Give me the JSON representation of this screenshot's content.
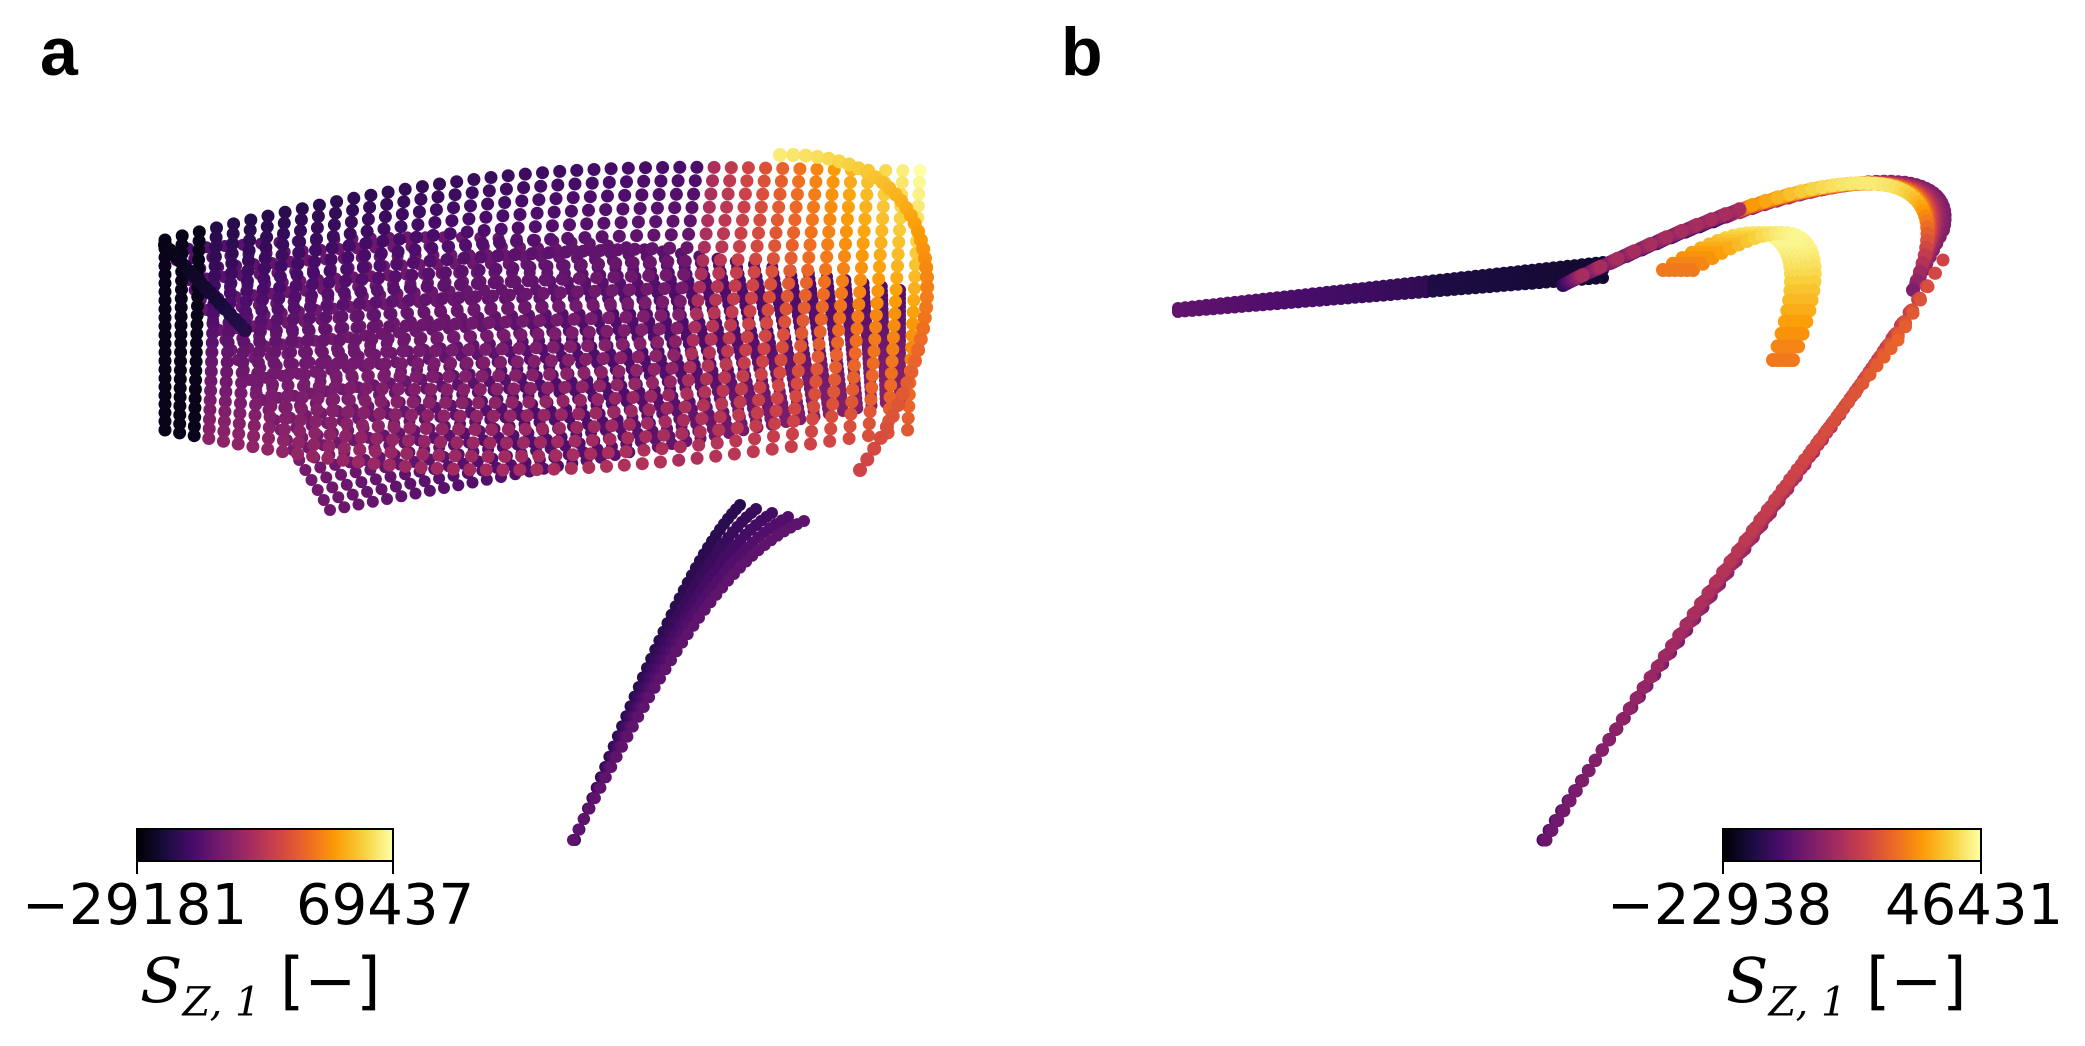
{
  "chart_data": [
    {
      "type": "scatter",
      "panel_label": "a",
      "colorbar": {
        "colormap": "inferno",
        "colors": [
          "#000004",
          "#1b0c41",
          "#4a0c6b",
          "#781c6d",
          "#a52c60",
          "#cf4446",
          "#ed6925",
          "#fb9b06",
          "#f7d13d",
          "#fcffa4"
        ],
        "min": -29181,
        "max": 69437,
        "tick_labels": [
          "−29181",
          "69437"
        ],
        "label_symbol": "S",
        "label_subscript": "Z, 1",
        "label_unit": " [−]"
      },
      "axes_visible": false
    },
    {
      "type": "scatter",
      "panel_label": "b",
      "colorbar": {
        "colormap": "inferno",
        "colors": [
          "#000004",
          "#1b0c41",
          "#4a0c6b",
          "#781c6d",
          "#a52c60",
          "#cf4446",
          "#ed6925",
          "#fb9b06",
          "#f7d13d",
          "#fcffa4"
        ],
        "min": -22938,
        "max": 46431,
        "tick_labels": [
          "−22938",
          "46431"
        ],
        "label_symbol": "S",
        "label_subscript": "Z, 1",
        "label_unit": " [−]"
      },
      "axes_visible": false
    }
  ]
}
